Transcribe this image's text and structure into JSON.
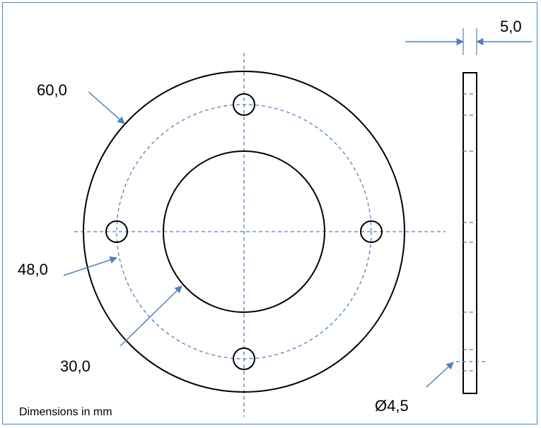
{
  "drawing": {
    "front_view": {
      "outer_diameter_label": "60,0",
      "bolt_circle_diameter_label": "48,0",
      "inner_diameter_label": "30,0",
      "hole_count": 4
    },
    "side_view": {
      "thickness_label": "5,0",
      "hole_diameter_label": "Ø4,5"
    },
    "note": "Dimensions in mm",
    "colors": {
      "frame": "#4f81bd",
      "centerline": "#4f81bd",
      "leader": "#4f81bd",
      "outline": "#000000",
      "text": "#000000"
    }
  }
}
